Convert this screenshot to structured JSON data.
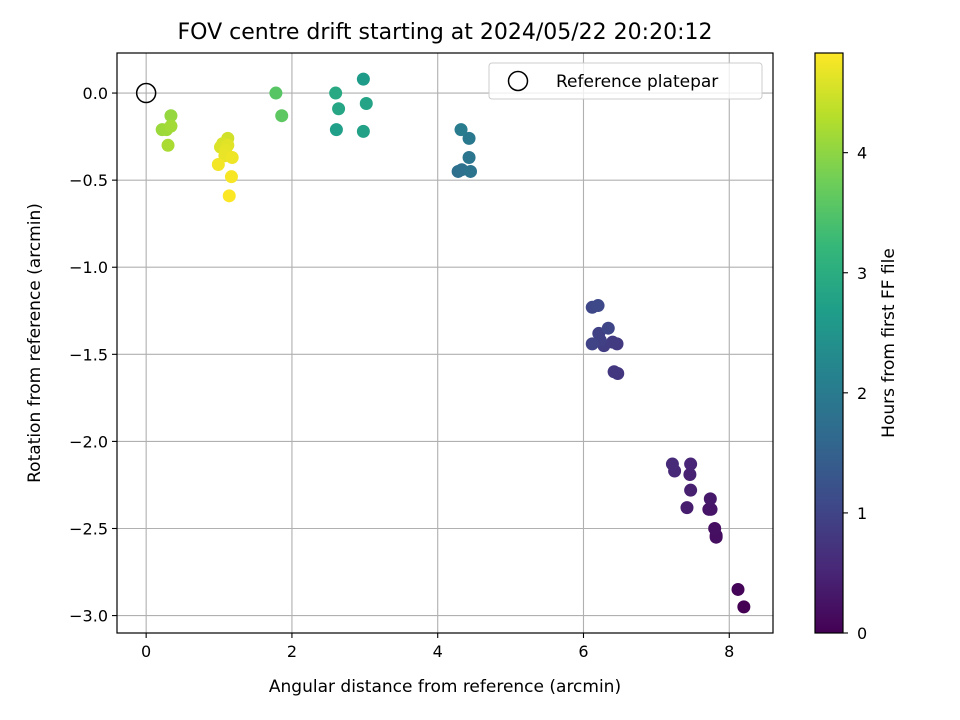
{
  "chart_data": {
    "type": "scatter",
    "title": "FOV centre drift starting at 2024/05/22 20:20:12",
    "xlabel": "Angular distance from reference (arcmin)",
    "ylabel": "Rotation from reference (arcmin)",
    "xlim": [
      -0.4,
      8.6
    ],
    "ylim": [
      -3.1,
      0.23
    ],
    "xticks": [
      0,
      2,
      4,
      6,
      8
    ],
    "xtick_labels": [
      "0",
      "2",
      "4",
      "6",
      "8"
    ],
    "yticks": [
      0.0,
      -0.5,
      -1.0,
      -1.5,
      -2.0,
      -2.5,
      -3.0
    ],
    "ytick_labels": [
      "0.0",
      "−0.5",
      "−1.0",
      "−1.5",
      "−2.0",
      "−2.5",
      "−3.0"
    ],
    "grid": true,
    "legend": {
      "placement": "top-right",
      "entries": [
        "Reference platepar"
      ]
    },
    "reference_point": {
      "x": 0,
      "y": 0,
      "marker": "open-circle"
    },
    "colorbar": {
      "label": "Hours from first FF file",
      "colormap": "viridis",
      "range": [
        0,
        4.83
      ],
      "ticks": [
        0,
        1,
        2,
        3,
        4
      ],
      "tick_labels": [
        "0",
        "1",
        "2",
        "3",
        "4"
      ],
      "stops": [
        "#440154",
        "#482878",
        "#3e4989",
        "#31688e",
        "#26828e",
        "#1f9e89",
        "#35b779",
        "#6ece58",
        "#b5de2b",
        "#fde725"
      ]
    },
    "series": [
      {
        "x": [
          8.2,
          8.12,
          7.82,
          7.82,
          7.8,
          7.72,
          7.75,
          7.74,
          7.42,
          7.47,
          7.46,
          7.47,
          7.25,
          7.22
        ],
        "y": [
          -2.95,
          -2.85,
          -2.54,
          -2.55,
          -2.5,
          -2.39,
          -2.39,
          -2.33,
          -2.38,
          -2.28,
          -2.19,
          -2.13,
          -2.17,
          -2.13
        ],
        "hours": [
          0.0,
          0.06,
          0.15,
          0.18,
          0.21,
          0.25,
          0.28,
          0.31,
          0.38,
          0.42,
          0.46,
          0.5,
          0.55,
          0.58
        ]
      },
      {
        "x": [
          6.47,
          6.42,
          6.46,
          6.4,
          6.28,
          6.23,
          6.21,
          6.12,
          6.34,
          6.12,
          6.2
        ],
        "y": [
          -1.61,
          -1.6,
          -1.44,
          -1.43,
          -1.45,
          -1.42,
          -1.38,
          -1.44,
          -1.35,
          -1.23,
          -1.22
        ],
        "hours": [
          0.75,
          0.78,
          0.82,
          0.85,
          0.88,
          0.92,
          0.95,
          0.98,
          1.02,
          1.05,
          1.08
        ]
      },
      {
        "x": [
          4.28,
          4.33,
          4.45,
          4.43,
          4.43,
          4.32
        ],
        "y": [
          -0.45,
          -0.44,
          -0.45,
          -0.37,
          -0.26,
          -0.21
        ],
        "hours": [
          1.75,
          1.8,
          1.85,
          1.9,
          1.95,
          2.0
        ]
      },
      {
        "x": [
          2.98,
          2.61,
          2.98,
          3.02,
          2.64,
          2.6
        ],
        "y": [
          0.08,
          -0.21,
          -0.22,
          -0.06,
          -0.09,
          0.0
        ],
        "hours": [
          2.65,
          2.7,
          2.75,
          2.8,
          2.85,
          2.9
        ]
      },
      {
        "x": [
          1.78,
          1.86
        ],
        "y": [
          0.0,
          -0.13
        ],
        "hours": [
          3.55,
          3.6
        ]
      },
      {
        "x": [
          0.34,
          0.22,
          0.28,
          0.34,
          0.3
        ],
        "y": [
          -0.13,
          -0.21,
          -0.21,
          -0.19,
          -0.3
        ],
        "hours": [
          4.05,
          4.1,
          4.12,
          4.15,
          4.2
        ]
      },
      {
        "x": [
          1.12,
          1.05,
          1.02,
          1.12,
          1.09,
          1.08,
          1.18,
          0.99,
          1.17,
          1.14
        ],
        "y": [
          -0.26,
          -0.29,
          -0.31,
          -0.3,
          -0.33,
          -0.36,
          -0.37,
          -0.41,
          -0.48,
          -0.59
        ],
        "hours": [
          4.5,
          4.55,
          4.58,
          4.62,
          4.65,
          4.68,
          4.72,
          4.75,
          4.78,
          4.82
        ]
      }
    ]
  }
}
